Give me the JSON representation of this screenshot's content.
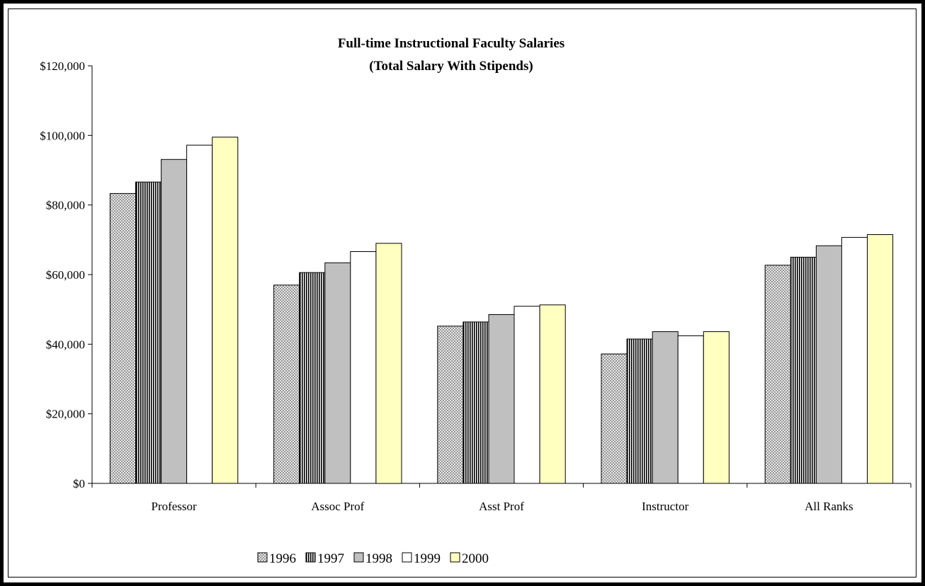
{
  "chart_data": {
    "type": "bar",
    "title": "Full-time Instructional Faculty Salaries",
    "subtitle": "(Total Salary With Stipends)",
    "categories": [
      "Professor",
      "Assoc Prof",
      "Asst Prof",
      "Instructor",
      "All Ranks"
    ],
    "ylim": [
      0,
      120000
    ],
    "yticks": [
      0,
      20000,
      40000,
      60000,
      80000,
      100000,
      120000
    ],
    "ytick_labels": [
      "$0",
      "$20,000",
      "$40,000",
      "$60,000",
      "$80,000",
      "$100,000",
      "$120,000"
    ],
    "grid": false,
    "legend_position": "bottom",
    "series": [
      {
        "name": "1996",
        "fill": "crosshatch",
        "color": "#c8c8c8",
        "values": [
          83300,
          57000,
          45200,
          37200,
          62700
        ]
      },
      {
        "name": "1997",
        "fill": "vertical-stripes",
        "color": "#000000",
        "values": [
          86600,
          60600,
          46400,
          41500,
          65000
        ]
      },
      {
        "name": "1998",
        "fill": "solid",
        "color": "#c0c0c0",
        "values": [
          93100,
          63400,
          48500,
          43600,
          68300
        ]
      },
      {
        "name": "1999",
        "fill": "solid",
        "color": "#ffffff",
        "values": [
          97200,
          66600,
          50900,
          42400,
          70700
        ]
      },
      {
        "name": "2000",
        "fill": "solid",
        "color": "#ffffc0",
        "values": [
          99500,
          69000,
          51300,
          43600,
          71500
        ]
      }
    ]
  }
}
